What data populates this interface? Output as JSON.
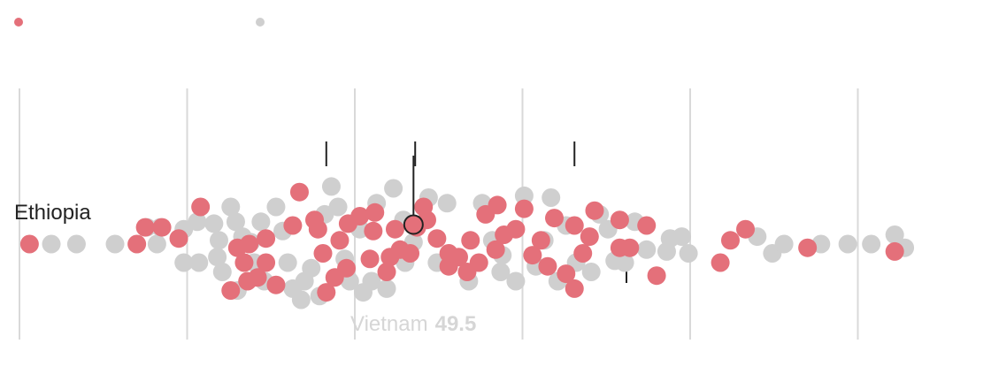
{
  "chart_data": {
    "type": "scatter",
    "subtype": "beeswarm",
    "title": "",
    "xlabel": "",
    "ylabel": "",
    "xlim": [
      10,
      65
    ],
    "gridlines": [
      10,
      20,
      30,
      40,
      50,
      60
    ],
    "legend": [
      {
        "name": "",
        "color": "#e4707a"
      },
      {
        "name": "",
        "color": "#cfcfcf"
      }
    ],
    "series": [
      {
        "name": "highlighted",
        "color": "#e4707a",
        "points": [
          {
            "x": 10.6,
            "lane": 0
          },
          {
            "x": 17.0,
            "lane": 0
          },
          {
            "x": 17.5,
            "lane": 0.9
          },
          {
            "x": 18.5,
            "lane": 0.9
          },
          {
            "x": 19.5,
            "lane": 0.3
          },
          {
            "x": 20.8,
            "lane": 2.0
          },
          {
            "x": 22.6,
            "lane": -2.5
          },
          {
            "x": 23.6,
            "lane": -2.0
          },
          {
            "x": 23.0,
            "lane": -0.2
          },
          {
            "x": 23.7,
            "lane": 0.0
          },
          {
            "x": 23.4,
            "lane": -1.0
          },
          {
            "x": 24.7,
            "lane": -1.0
          },
          {
            "x": 24.2,
            "lane": -1.8
          },
          {
            "x": 25.3,
            "lane": -2.2
          },
          {
            "x": 24.7,
            "lane": 0.3
          },
          {
            "x": 26.3,
            "lane": 1.0
          },
          {
            "x": 27.6,
            "lane": 1.3
          },
          {
            "x": 26.7,
            "lane": 2.8
          },
          {
            "x": 27.8,
            "lane": 0.8
          },
          {
            "x": 28.3,
            "lane": -2.6
          },
          {
            "x": 28.8,
            "lane": -1.8
          },
          {
            "x": 28.1,
            "lane": -0.5
          },
          {
            "x": 29.5,
            "lane": -1.3
          },
          {
            "x": 29.1,
            "lane": 0.2
          },
          {
            "x": 29.6,
            "lane": 1.1
          },
          {
            "x": 30.3,
            "lane": 1.5
          },
          {
            "x": 30.9,
            "lane": -0.8
          },
          {
            "x": 31.2,
            "lane": 1.7
          },
          {
            "x": 31.1,
            "lane": 0.7
          },
          {
            "x": 31.9,
            "lane": -1.5
          },
          {
            "x": 32.1,
            "lane": -0.7
          },
          {
            "x": 32.4,
            "lane": 0.8
          },
          {
            "x": 32.7,
            "lane": -0.3
          },
          {
            "x": 33.3,
            "lane": -0.5
          },
          {
            "x": 33.7,
            "lane": 0.9
          },
          {
            "x": 34.1,
            "lane": 2.0
          },
          {
            "x": 34.3,
            "lane": 1.3
          },
          {
            "x": 34.9,
            "lane": 0.3
          },
          {
            "x": 35.6,
            "lane": -1.2
          },
          {
            "x": 35.6,
            "lane": -0.5
          },
          {
            "x": 36.2,
            "lane": -0.7
          },
          {
            "x": 36.7,
            "lane": -1.5
          },
          {
            "x": 36.9,
            "lane": 0.2
          },
          {
            "x": 37.4,
            "lane": -1.0
          },
          {
            "x": 37.8,
            "lane": 1.6
          },
          {
            "x": 38.4,
            "lane": -0.3
          },
          {
            "x": 38.9,
            "lane": 0.5
          },
          {
            "x": 38.5,
            "lane": 2.1
          },
          {
            "x": 39.6,
            "lane": 0.8
          },
          {
            "x": 40.1,
            "lane": 1.9
          },
          {
            "x": 40.6,
            "lane": -0.6
          },
          {
            "x": 41.1,
            "lane": 0.2
          },
          {
            "x": 41.5,
            "lane": -1.2
          },
          {
            "x": 41.9,
            "lane": 1.4
          },
          {
            "x": 42.6,
            "lane": -1.6
          },
          {
            "x": 43.1,
            "lane": -2.4
          },
          {
            "x": 43.1,
            "lane": 1.0
          },
          {
            "x": 43.6,
            "lane": -0.5
          },
          {
            "x": 44.0,
            "lane": 0.4
          },
          {
            "x": 44.3,
            "lane": 1.8
          },
          {
            "x": 45.8,
            "lane": -0.2
          },
          {
            "x": 45.8,
            "lane": 1.3
          },
          {
            "x": 46.4,
            "lane": -0.2
          },
          {
            "x": 47.4,
            "lane": 1.0
          },
          {
            "x": 48.0,
            "lane": -1.7
          },
          {
            "x": 51.8,
            "lane": -1.0
          },
          {
            "x": 52.4,
            "lane": 0.2
          },
          {
            "x": 53.3,
            "lane": 0.8
          },
          {
            "x": 57.0,
            "lane": -0.2
          },
          {
            "x": 62.2,
            "lane": -0.4
          },
          {
            "x": 69.5,
            "lane": 0
          }
        ]
      },
      {
        "name": "others",
        "color": "#cfcfcf",
        "points": [
          {
            "x": 11.9,
            "lane": 0
          },
          {
            "x": 13.4,
            "lane": 0
          },
          {
            "x": 15.7,
            "lane": 0
          },
          {
            "x": 17.6,
            "lane": 0.9
          },
          {
            "x": 18.2,
            "lane": 0
          },
          {
            "x": 18.4,
            "lane": 0.9
          },
          {
            "x": 19.8,
            "lane": -1.0
          },
          {
            "x": 19.8,
            "lane": 0.8
          },
          {
            "x": 20.6,
            "lane": 1.2
          },
          {
            "x": 20.7,
            "lane": -1.0
          },
          {
            "x": 21.6,
            "lane": 1.1
          },
          {
            "x": 21.9,
            "lane": 0.2
          },
          {
            "x": 21.8,
            "lane": -0.7
          },
          {
            "x": 22.1,
            "lane": -1.5
          },
          {
            "x": 22.6,
            "lane": 2.0
          },
          {
            "x": 22.9,
            "lane": 1.2
          },
          {
            "x": 23.0,
            "lane": -2.5
          },
          {
            "x": 23.3,
            "lane": 0.4
          },
          {
            "x": 23.8,
            "lane": 0.1
          },
          {
            "x": 24.0,
            "lane": -1.0
          },
          {
            "x": 24.4,
            "lane": 1.2
          },
          {
            "x": 24.6,
            "lane": -2.0
          },
          {
            "x": 25.3,
            "lane": 2.0
          },
          {
            "x": 25.7,
            "lane": 0.7
          },
          {
            "x": 26.0,
            "lane": -1.0
          },
          {
            "x": 26.3,
            "lane": -2.4
          },
          {
            "x": 26.8,
            "lane": -3.0
          },
          {
            "x": 27.0,
            "lane": -2.0
          },
          {
            "x": 27.4,
            "lane": -1.3
          },
          {
            "x": 27.9,
            "lane": -2.8
          },
          {
            "x": 28.2,
            "lane": 1.6
          },
          {
            "x": 28.6,
            "lane": 3.1
          },
          {
            "x": 29.0,
            "lane": 2.0
          },
          {
            "x": 29.4,
            "lane": -0.8
          },
          {
            "x": 29.7,
            "lane": -2.0
          },
          {
            "x": 30.3,
            "lane": 0.8
          },
          {
            "x": 30.5,
            "lane": -2.6
          },
          {
            "x": 31.0,
            "lane": -2.0
          },
          {
            "x": 31.3,
            "lane": 2.2
          },
          {
            "x": 31.9,
            "lane": -2.4
          },
          {
            "x": 32.3,
            "lane": 3.0
          },
          {
            "x": 32.9,
            "lane": 1.3
          },
          {
            "x": 33.0,
            "lane": -1.0
          },
          {
            "x": 33.5,
            "lane": 0.1
          },
          {
            "x": 34.4,
            "lane": 2.5
          },
          {
            "x": 34.9,
            "lane": -1.0
          },
          {
            "x": 35.5,
            "lane": 2.2
          },
          {
            "x": 36.8,
            "lane": -2.0
          },
          {
            "x": 37.6,
            "lane": 2.2
          },
          {
            "x": 38.2,
            "lane": 0.2
          },
          {
            "x": 38.7,
            "lane": -1.5
          },
          {
            "x": 38.8,
            "lane": -0.6
          },
          {
            "x": 39.6,
            "lane": -2.0
          },
          {
            "x": 40.1,
            "lane": 2.6
          },
          {
            "x": 40.8,
            "lane": -1.2
          },
          {
            "x": 41.3,
            "lane": 0.2
          },
          {
            "x": 41.7,
            "lane": 2.5
          },
          {
            "x": 42.1,
            "lane": -2.0
          },
          {
            "x": 42.6,
            "lane": 1.0
          },
          {
            "x": 43.2,
            "lane": -1.0
          },
          {
            "x": 44.1,
            "lane": -1.5
          },
          {
            "x": 44.6,
            "lane": 1.6
          },
          {
            "x": 45.1,
            "lane": 0.8
          },
          {
            "x": 45.5,
            "lane": -0.9
          },
          {
            "x": 46.1,
            "lane": -1.0
          },
          {
            "x": 46.7,
            "lane": 1.2
          },
          {
            "x": 47.4,
            "lane": -0.3
          },
          {
            "x": 48.6,
            "lane": -0.4
          },
          {
            "x": 48.8,
            "lane": 0.3
          },
          {
            "x": 49.5,
            "lane": 0.4
          },
          {
            "x": 49.9,
            "lane": -0.5
          },
          {
            "x": 54.0,
            "lane": 0.4
          },
          {
            "x": 54.9,
            "lane": -0.5
          },
          {
            "x": 55.6,
            "lane": 0.0
          },
          {
            "x": 57.8,
            "lane": 0.0
          },
          {
            "x": 59.4,
            "lane": 0.0
          },
          {
            "x": 60.8,
            "lane": 0.0
          },
          {
            "x": 62.2,
            "lane": 0.5
          },
          {
            "x": 62.8,
            "lane": -0.2
          }
        ]
      }
    ],
    "highlight": {
      "label": "Vietnam",
      "value": 49.5,
      "x": 33.5
    },
    "annotations": [
      {
        "label": "Ethiopia",
        "x": 10.6
      }
    ],
    "ticks": [
      {
        "x": 28.3,
        "dir": "up"
      },
      {
        "x": 33.6,
        "dir": "up"
      },
      {
        "x": 43.1,
        "dir": "up"
      },
      {
        "x": 46.2,
        "dir": "down"
      }
    ]
  }
}
